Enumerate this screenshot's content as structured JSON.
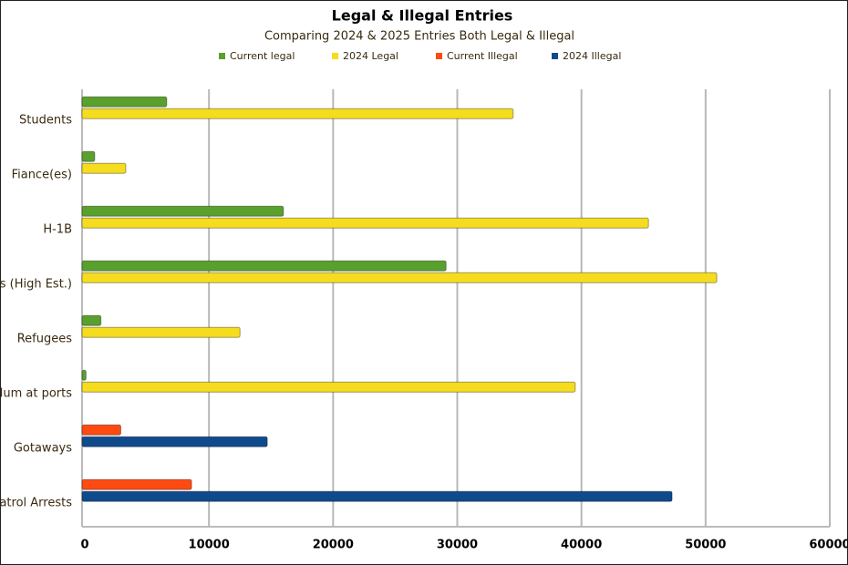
{
  "chart_data": {
    "type": "bar",
    "orientation": "horizontal",
    "title": "Legal & Illegal Entries",
    "subtitle": "Comparing 2024 & 2025 Entries Both Legal & Illegal",
    "categories": [
      "Students",
      "Fiance(es)",
      "H-1B",
      "s (High Est.)",
      "Refugees",
      "lum at ports",
      "Gotaways",
      "atrol Arrests"
    ],
    "series": [
      {
        "name": "Current legal",
        "color": "#5aa02c",
        "values": [
          6600,
          800,
          16000,
          29100,
          1300,
          100,
          null,
          null
        ]
      },
      {
        "name": "2024 Legal",
        "color": "#f5dc1e",
        "values": [
          34500,
          3300,
          45400,
          50900,
          12500,
          39500,
          null,
          null
        ]
      },
      {
        "name": "Current Illegal",
        "color": "#ff4a12",
        "values": [
          null,
          null,
          null,
          null,
          null,
          null,
          2900,
          8600
        ]
      },
      {
        "name": "2024 Illegal",
        "color": "#0f4a8c",
        "values": [
          null,
          null,
          null,
          null,
          null,
          null,
          14700,
          47300
        ]
      }
    ],
    "xlim": [
      0,
      60000
    ],
    "xticks": [
      0,
      10000,
      20000,
      30000,
      40000,
      50000,
      60000
    ],
    "grid": true,
    "legend": "top"
  }
}
